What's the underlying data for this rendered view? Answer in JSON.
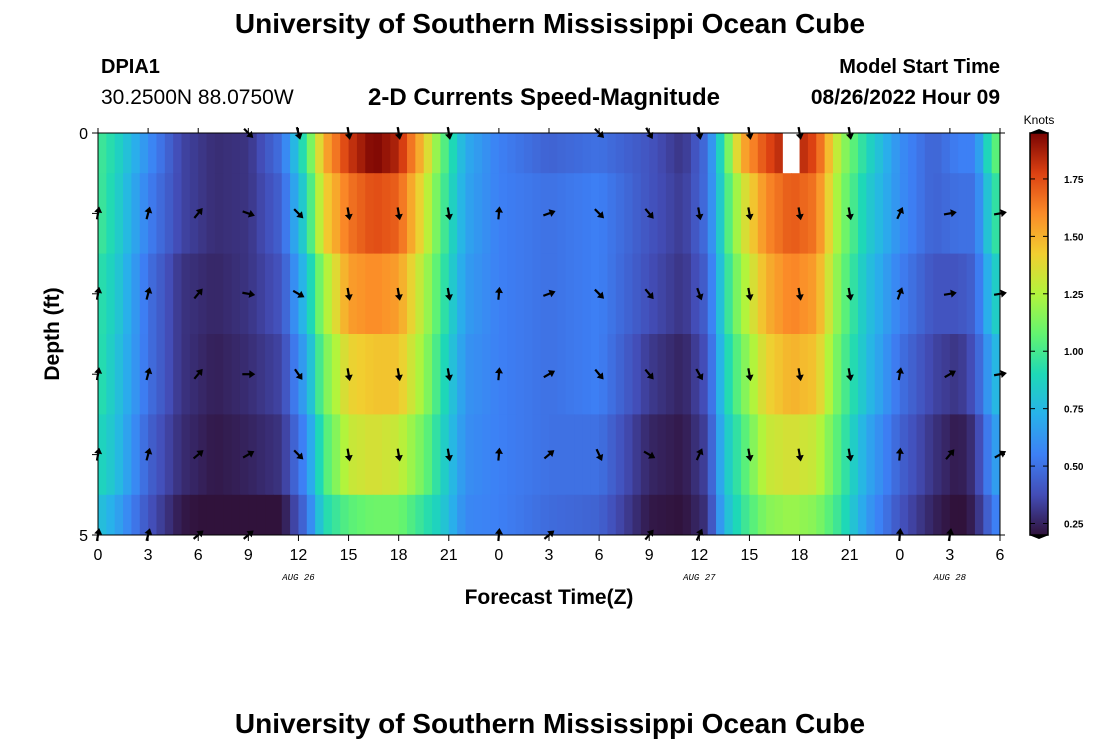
{
  "header": {
    "title": "University of Southern Mississippi Ocean Cube",
    "station_id": "DPIA1",
    "coords": "30.2500N  88.0750W",
    "chart_title": "2-D Currents Speed-Magnitude",
    "model_start_label": "Model Start Time",
    "model_start_value": "08/26/2022 Hour 09"
  },
  "footer": {
    "title": "University of Southern Mississippi Ocean Cube"
  },
  "chart_data": {
    "type": "heatmap",
    "title": "2-D Currents Speed-Magnitude",
    "xlabel": "Forecast Time(Z)",
    "ylabel": "Depth (ft)",
    "xlim": [
      0,
      54
    ],
    "ylim": [
      0,
      5
    ],
    "x_ticks": [
      {
        "t": 0,
        "label": "0"
      },
      {
        "t": 3,
        "label": "3"
      },
      {
        "t": 6,
        "label": "6"
      },
      {
        "t": 9,
        "label": "9"
      },
      {
        "t": 12,
        "label": "12"
      },
      {
        "t": 15,
        "label": "15"
      },
      {
        "t": 18,
        "label": "18"
      },
      {
        "t": 21,
        "label": "21"
      },
      {
        "t": 24,
        "label": "0"
      },
      {
        "t": 27,
        "label": "3"
      },
      {
        "t": 30,
        "label": "6"
      },
      {
        "t": 33,
        "label": "9"
      },
      {
        "t": 36,
        "label": "12"
      },
      {
        "t": 39,
        "label": "15"
      },
      {
        "t": 42,
        "label": "18"
      },
      {
        "t": 45,
        "label": "21"
      },
      {
        "t": 48,
        "label": "0"
      },
      {
        "t": 51,
        "label": "3"
      },
      {
        "t": 54,
        "label": "6"
      }
    ],
    "y_ticks": [
      {
        "d": 0,
        "label": "0"
      },
      {
        "d": 5,
        "label": "5"
      }
    ],
    "date_labels": [
      {
        "t": 12,
        "label": "AUG 26"
      },
      {
        "t": 36,
        "label": "AUG 27"
      },
      {
        "t": 51,
        "label": "AUG 28"
      }
    ],
    "colorbar": {
      "label": "Knots",
      "min": 0.2,
      "max": 1.95,
      "ticks": [
        {
          "v": 1.75,
          "label": "1.75"
        },
        {
          "v": 1.5,
          "label": "1.50"
        },
        {
          "v": 1.25,
          "label": "1.25"
        },
        {
          "v": 1.0,
          "label": "1.00"
        },
        {
          "v": 0.75,
          "label": "0.75"
        },
        {
          "v": 0.5,
          "label": "0.50"
        },
        {
          "v": 0.25,
          "label": "0.25"
        }
      ]
    },
    "speed_keyframes": [
      {
        "t": 0,
        "s": [
          1.0,
          1.0,
          0.95,
          0.95,
          0.9,
          0.8
        ]
      },
      {
        "t": 1,
        "s": [
          0.9,
          0.88,
          0.85,
          0.82,
          0.8,
          0.7
        ]
      },
      {
        "t": 3,
        "s": [
          0.6,
          0.55,
          0.5,
          0.5,
          0.45,
          0.4
        ]
      },
      {
        "t": 5,
        "s": [
          0.35,
          0.35,
          0.3,
          0.3,
          0.28,
          0.22
        ]
      },
      {
        "t": 7,
        "s": [
          0.28,
          0.28,
          0.26,
          0.24,
          0.22,
          0.18
        ]
      },
      {
        "t": 9,
        "s": [
          0.3,
          0.3,
          0.3,
          0.28,
          0.25,
          0.2
        ]
      },
      {
        "t": 11,
        "s": [
          0.5,
          0.45,
          0.4,
          0.35,
          0.3,
          0.2
        ]
      },
      {
        "t": 12.5,
        "s": [
          1.0,
          0.9,
          0.8,
          0.7,
          0.6,
          0.5
        ]
      },
      {
        "t": 13.5,
        "s": [
          1.5,
          1.4,
          1.2,
          1.1,
          1.0,
          0.9
        ]
      },
      {
        "t": 15,
        "s": [
          1.8,
          1.65,
          1.55,
          1.4,
          1.3,
          1.05
        ]
      },
      {
        "t": 16.5,
        "s": [
          1.95,
          1.75,
          1.6,
          1.45,
          1.35,
          1.1
        ]
      },
      {
        "t": 18,
        "s": [
          1.85,
          1.7,
          1.55,
          1.45,
          1.3,
          1.1
        ]
      },
      {
        "t": 19.5,
        "s": [
          1.45,
          1.35,
          1.25,
          1.2,
          1.1,
          0.95
        ]
      },
      {
        "t": 20.5,
        "s": [
          1.1,
          1.05,
          1.0,
          0.95,
          0.9,
          0.85
        ]
      },
      {
        "t": 22,
        "s": [
          0.7,
          0.68,
          0.65,
          0.62,
          0.6,
          0.58
        ]
      },
      {
        "t": 24,
        "s": [
          0.55,
          0.55,
          0.55,
          0.55,
          0.55,
          0.55
        ]
      },
      {
        "t": 27,
        "s": [
          0.45,
          0.5,
          0.5,
          0.5,
          0.5,
          0.48
        ]
      },
      {
        "t": 30,
        "s": [
          0.5,
          0.55,
          0.55,
          0.55,
          0.5,
          0.45
        ]
      },
      {
        "t": 33,
        "s": [
          0.4,
          0.4,
          0.38,
          0.32,
          0.26,
          0.22
        ]
      },
      {
        "t": 35,
        "s": [
          0.3,
          0.32,
          0.3,
          0.25,
          0.22,
          0.2
        ]
      },
      {
        "t": 36.5,
        "s": [
          0.5,
          0.5,
          0.45,
          0.4,
          0.35,
          0.3
        ]
      },
      {
        "t": 37.5,
        "s": [
          1.0,
          0.95,
          0.9,
          0.85,
          0.8,
          0.75
        ]
      },
      {
        "t": 38.5,
        "s": [
          1.5,
          1.3,
          1.2,
          1.1,
          1.0,
          0.95
        ]
      },
      {
        "t": 40,
        "s": [
          1.75,
          1.6,
          1.5,
          1.4,
          1.3,
          1.15
        ]
      },
      {
        "t": 41.5,
        "s": [
          1.9,
          1.72,
          1.62,
          1.5,
          1.35,
          1.2
        ]
      },
      {
        "t": 43,
        "s": [
          1.75,
          1.65,
          1.55,
          1.45,
          1.3,
          1.15
        ]
      },
      {
        "t": 44.5,
        "s": [
          1.2,
          1.15,
          1.1,
          1.05,
          1.0,
          0.95
        ]
      },
      {
        "t": 46,
        "s": [
          0.9,
          0.85,
          0.8,
          0.78,
          0.7,
          0.65
        ]
      },
      {
        "t": 48,
        "s": [
          0.6,
          0.6,
          0.55,
          0.5,
          0.45,
          0.4
        ]
      },
      {
        "t": 50,
        "s": [
          0.45,
          0.45,
          0.4,
          0.35,
          0.3,
          0.25
        ]
      },
      {
        "t": 51.5,
        "s": [
          0.55,
          0.5,
          0.4,
          0.3,
          0.22,
          0.18
        ]
      },
      {
        "t": 52.5,
        "s": [
          0.55,
          0.5,
          0.45,
          0.4,
          0.3,
          0.25
        ]
      },
      {
        "t": 53.5,
        "s": [
          1.0,
          0.9,
          0.8,
          0.7,
          0.6,
          0.5
        ]
      },
      {
        "t": 54,
        "s": [
          1.1,
          1.0,
          0.9,
          0.8,
          0.7,
          0.6
        ]
      }
    ],
    "missing_cells": [
      {
        "t": 41.5,
        "row": 0
      }
    ],
    "arrow_directions_deg": [
      {
        "t": 0,
        "dirs": [
          null,
          10,
          10,
          10,
          10,
          10
        ]
      },
      {
        "t": 3,
        "dirs": [
          null,
          15,
          15,
          15,
          15,
          15
        ]
      },
      {
        "t": 6,
        "dirs": [
          null,
          40,
          40,
          40,
          50,
          50
        ]
      },
      {
        "t": 9,
        "dirs": [
          135,
          110,
          100,
          90,
          60,
          50
        ]
      },
      {
        "t": 12,
        "dirs": [
          165,
          135,
          120,
          145,
          135,
          null
        ]
      },
      {
        "t": 15,
        "dirs": [
          170,
          170,
          170,
          170,
          170,
          null
        ]
      },
      {
        "t": 18,
        "dirs": [
          170,
          170,
          170,
          170,
          170,
          null
        ]
      },
      {
        "t": 21,
        "dirs": [
          170,
          170,
          170,
          170,
          170,
          null
        ]
      },
      {
        "t": 24,
        "dirs": [
          null,
          5,
          5,
          5,
          5,
          5
        ]
      },
      {
        "t": 27,
        "dirs": [
          null,
          70,
          70,
          60,
          50,
          50
        ]
      },
      {
        "t": 30,
        "dirs": [
          135,
          135,
          135,
          140,
          155,
          null
        ]
      },
      {
        "t": 33,
        "dirs": [
          150,
          140,
          140,
          140,
          120,
          40
        ]
      },
      {
        "t": 36,
        "dirs": [
          170,
          170,
          160,
          150,
          25,
          25
        ]
      },
      {
        "t": 39,
        "dirs": [
          170,
          170,
          170,
          170,
          170,
          null
        ]
      },
      {
        "t": 42,
        "dirs": [
          170,
          170,
          170,
          170,
          170,
          null
        ]
      },
      {
        "t": 45,
        "dirs": [
          170,
          170,
          170,
          170,
          170,
          null
        ]
      },
      {
        "t": 48,
        "dirs": [
          null,
          25,
          20,
          10,
          5,
          5
        ]
      },
      {
        "t": 51,
        "dirs": [
          null,
          80,
          80,
          60,
          40,
          10
        ]
      },
      {
        "t": 54,
        "dirs": [
          null,
          80,
          80,
          80,
          60,
          null
        ]
      }
    ]
  }
}
